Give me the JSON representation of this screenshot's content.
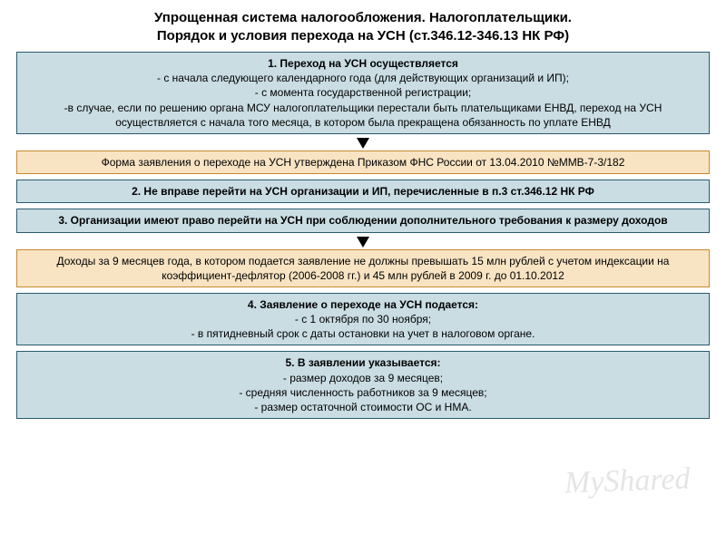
{
  "colors": {
    "blue_bg": "#c9dde3",
    "blue_border": "#2a5b6e",
    "orange_bg": "#f8e3c3",
    "orange_border": "#c78a2e",
    "page_bg": "#ffffff",
    "text": "#000000"
  },
  "fontsizes": {
    "title": 15,
    "body": 12
  },
  "title": {
    "line1": "Упрощенная система налогообложения. Налогоплательщики.",
    "line2": "Порядок и условия перехода на УСН (ст.346.12-346.13 НК РФ)"
  },
  "boxes": [
    {
      "id": "box1",
      "style": "blue",
      "head": "1. Переход на УСН осуществляется",
      "lines": [
        "- с начала следующего календарного года (для действующих организаций и ИП);",
        "- с момента государственной регистрации;",
        "-в случае, если по решению органа МСУ налогоплательщики перестали быть плательщиками ЕНВД, переход на УСН осуществляется с начала того месяца, в котором была прекращена обязанность по уплате ЕНВД"
      ],
      "arrow_after": true
    },
    {
      "id": "box2",
      "style": "orange",
      "text": "Форма заявления о переходе на УСН утверждена Приказом ФНС России от 13.04.2010 №ММВ-7-3/182"
    },
    {
      "id": "box3",
      "style": "blue",
      "bold_text": "2. Не вправе перейти на УСН организации и ИП, перечисленные в п.3 ст.346.12 НК РФ"
    },
    {
      "id": "box4",
      "style": "blue",
      "bold_text": "3. Организации имеют право перейти на УСН при соблюдении дополнительного требования к размеру доходов",
      "arrow_after": true
    },
    {
      "id": "box5",
      "style": "orange",
      "text": "Доходы за 9 месяцев года, в котором подается заявление не должны превышать 15 млн рублей с учетом индексации на коэффициент-дефлятор (2006-2008 гг.) и 45 млн рублей в 2009 г. до 01.10.2012"
    },
    {
      "id": "box6",
      "style": "blue",
      "head": "4. Заявление о переходе на УСН подается:",
      "lines": [
        "- с 1 октября по 30 ноября;",
        "- в пятидневный срок с даты остановки на учет в налоговом органе."
      ]
    },
    {
      "id": "box7",
      "style": "blue",
      "head": "5. В заявлении указывается:",
      "lines": [
        "- размер доходов за 9 месяцев;",
        "- средняя численность работников за 9 месяцев;",
        "- размер остаточной стоимости ОС и НМА."
      ]
    }
  ],
  "watermark": "MyShared"
}
